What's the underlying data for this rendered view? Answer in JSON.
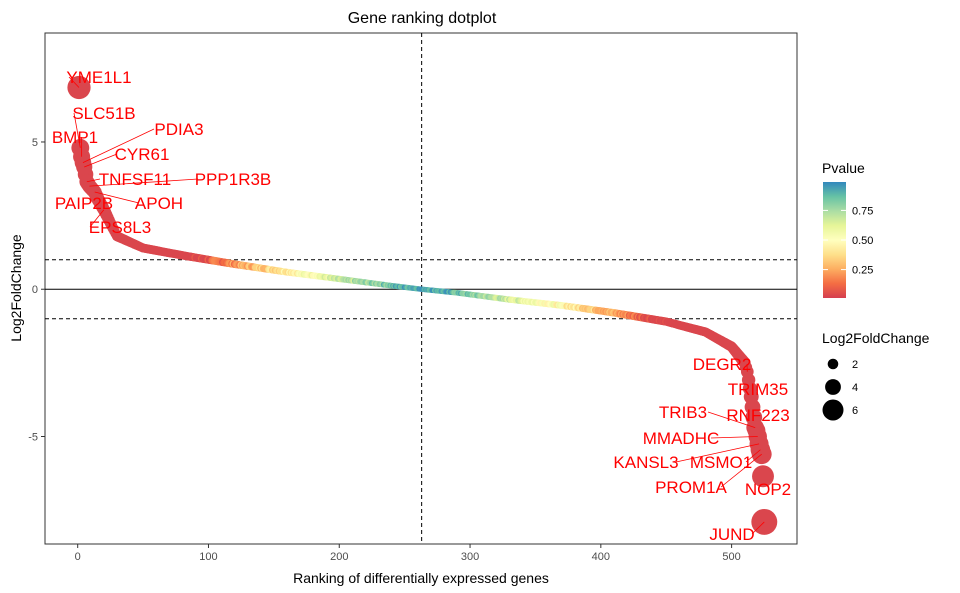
{
  "chart_data": {
    "type": "scatter",
    "title": "Gene ranking dotplot",
    "xlabel": "Ranking of differentially expressed genes",
    "ylabel": "Log2FoldChange",
    "xlim": [
      -25,
      550
    ],
    "ylim": [
      -8.65,
      8.7
    ],
    "x_ticks": [
      0,
      100,
      200,
      300,
      400,
      500
    ],
    "y_ticks": [
      5,
      0,
      -5
    ],
    "y_tick_labels": [
      "5",
      "0",
      "-5"
    ],
    "n_genes": 525,
    "reference_lines": {
      "vertical_x": 263,
      "horizontal_dashed_y": [
        1,
        -1
      ],
      "horizontal_solid_y": 0
    },
    "labeled_genes": [
      {
        "name": "YME1L1",
        "x": 1,
        "y": 6.85,
        "pvalue": 0.03
      },
      {
        "name": "SLC51B",
        "x": 2,
        "y": 4.8,
        "pvalue": 0.03
      },
      {
        "name": "BMP1",
        "x": 3,
        "y": 4.5,
        "pvalue": 0.03
      },
      {
        "name": "PDIA3",
        "x": 4,
        "y": 4.3,
        "pvalue": 0.03
      },
      {
        "name": "CYR61",
        "x": 5,
        "y": 4.15,
        "pvalue": 0.03
      },
      {
        "name": "TNFSF11",
        "x": 7,
        "y": 3.65,
        "pvalue": 0.03
      },
      {
        "name": "PPP1R3B",
        "x": 9,
        "y": 3.5,
        "pvalue": 0.03
      },
      {
        "name": "APOH",
        "x": 13,
        "y": 3.3,
        "pvalue": 0.03
      },
      {
        "name": "PAIP2B",
        "x": 15,
        "y": 3.1,
        "pvalue": 0.03
      },
      {
        "name": "EPS8L3",
        "x": 20,
        "y": 2.7,
        "pvalue": 0.03
      },
      {
        "name": "DEGR2",
        "x": 512,
        "y": -2.8,
        "pvalue": 0.03
      },
      {
        "name": "TRIM35",
        "x": 515,
        "y": -3.65,
        "pvalue": 0.03
      },
      {
        "name": "TRIB3",
        "x": 518,
        "y": -4.7,
        "pvalue": 0.03
      },
      {
        "name": "RNF223",
        "x": 519,
        "y": -4.8,
        "pvalue": 0.03
      },
      {
        "name": "MMADHC",
        "x": 520,
        "y": -5.0,
        "pvalue": 0.03
      },
      {
        "name": "KANSL3",
        "x": 521,
        "y": -5.25,
        "pvalue": 0.03
      },
      {
        "name": "MSMO1",
        "x": 522,
        "y": -5.45,
        "pvalue": 0.03
      },
      {
        "name": "PROM1A",
        "x": 523,
        "y": -5.6,
        "pvalue": 0.03
      },
      {
        "name": "NOP2",
        "x": 524,
        "y": -6.35,
        "pvalue": 0.03
      },
      {
        "name": "JUND",
        "x": 525,
        "y": -7.9,
        "pvalue": 0.03
      }
    ],
    "curve_knots": [
      [
        1,
        6.85
      ],
      [
        2,
        4.8
      ],
      [
        3,
        4.5
      ],
      [
        4,
        4.3
      ],
      [
        5,
        4.15
      ],
      [
        7,
        3.65
      ],
      [
        9,
        3.5
      ],
      [
        13,
        3.3
      ],
      [
        15,
        3.1
      ],
      [
        20,
        2.7
      ],
      [
        30,
        1.8
      ],
      [
        50,
        1.4
      ],
      [
        80,
        1.15
      ],
      [
        120,
        0.85
      ],
      [
        160,
        0.58
      ],
      [
        200,
        0.35
      ],
      [
        240,
        0.12
      ],
      [
        263,
        0.0
      ],
      [
        290,
        -0.12
      ],
      [
        330,
        -0.35
      ],
      [
        370,
        -0.55
      ],
      [
        410,
        -0.8
      ],
      [
        450,
        -1.1
      ],
      [
        480,
        -1.45
      ],
      [
        500,
        -1.95
      ],
      [
        510,
        -2.5
      ],
      [
        512,
        -2.8
      ],
      [
        515,
        -3.65
      ],
      [
        518,
        -4.7
      ],
      [
        519,
        -4.8
      ],
      [
        520,
        -5.0
      ],
      [
        521,
        -5.25
      ],
      [
        522,
        -5.45
      ],
      [
        523,
        -5.6
      ],
      [
        524,
        -6.35
      ],
      [
        525,
        -7.9
      ]
    ],
    "legend_color": {
      "title": "Pvalue",
      "ticks": [
        0.25,
        0.5,
        0.75
      ],
      "tick_labels": [
        "0.25",
        "0.50",
        "0.75"
      ],
      "range": [
        0.01,
        0.99
      ],
      "colors": [
        "#d53e4f",
        "#f46d43",
        "#fdae61",
        "#fee08b",
        "#ffffbf",
        "#e6f598",
        "#abdda4",
        "#66c2a5",
        "#3288bd"
      ]
    },
    "legend_size": {
      "title": "Log2FoldChange",
      "values": [
        2,
        4,
        6
      ],
      "labels": [
        "2",
        "4",
        "6"
      ]
    }
  }
}
